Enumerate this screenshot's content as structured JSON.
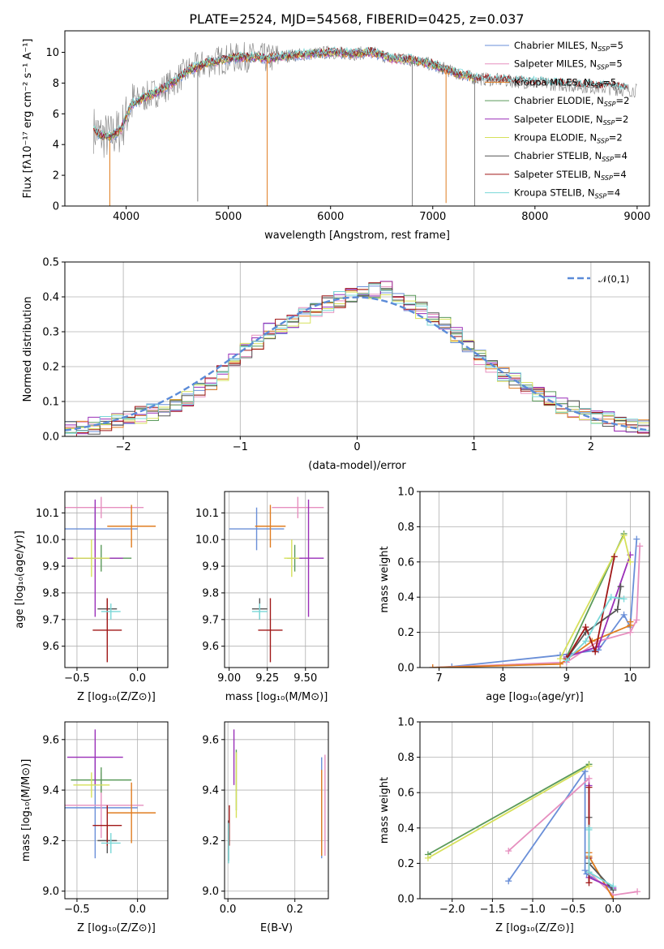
{
  "figure": {
    "title": "PLATE=2524, MJD=54568, FIBERID=0425, z=0.037"
  },
  "colors": {
    "chabrier_miles": "#6a8fd8",
    "salpeter_miles": "#e68fbf",
    "kroupa_miles": "#e07d20",
    "chabrier_elodie": "#5a9a5a",
    "salpeter_elodie": "#9a2fb8",
    "kroupa_elodie": "#d6e05a",
    "chabrier_stelib": "#555555",
    "salpeter_stelib": "#a01818",
    "kroupa_stelib": "#7ad8d8",
    "data": "#808080",
    "gaussian": "#5b8bd8"
  },
  "chart_data": [
    {
      "id": "spectrum",
      "type": "line",
      "xlabel": "wavelength [Angstrom, rest frame]",
      "ylabel": "Flux [fλ10⁻¹⁷ erg cm⁻² s⁻¹ A⁻¹]",
      "xlim": [
        3400,
        9120
      ],
      "ylim": [
        0,
        11.4
      ],
      "xticks": [
        4000,
        5000,
        6000,
        7000,
        8000,
        9000
      ],
      "yticks": [
        0,
        2,
        4,
        6,
        8,
        10
      ],
      "legend_position": "top-right",
      "legend": [
        "Chabrier MILES, N_SSP=5",
        "Salpeter MILES, N_SSP=5",
        "Kroupa MILES, N_SSP=5",
        "Chabrier ELODIE, N_SSP=2",
        "Salpeter ELODIE, N_SSP=2",
        "Kroupa ELODIE, N_SSP=2",
        "Chabrier STELIB, N_SSP=4",
        "Salpeter STELIB, N_SSP=4",
        "Kroupa STELIB, N_SSP=4"
      ],
      "continuum": {
        "x": [
          3680,
          3750,
          3850,
          3950,
          4050,
          4150,
          4300,
          4450,
          4600,
          4800,
          5000,
          5200,
          5400,
          5600,
          5800,
          6000,
          6200,
          6400,
          6600,
          6800,
          7000,
          7200,
          7420
        ],
        "y": [
          5.0,
          4.6,
          4.5,
          5.0,
          6.6,
          7.0,
          7.4,
          8.0,
          8.8,
          9.3,
          9.6,
          9.7,
          9.6,
          9.8,
          9.9,
          10.0,
          9.9,
          10.0,
          9.6,
          9.5,
          9.2,
          8.7,
          8.3
        ]
      },
      "spikes": [
        {
          "x": 3840,
          "y": 0.0
        },
        {
          "x": 4700,
          "y": 0.3
        },
        {
          "x": 5380,
          "y": 0.0
        },
        {
          "x": 6800,
          "y": 0.0
        },
        {
          "x": 7130,
          "y": 0.2
        },
        {
          "x": 7410,
          "y": 0.0
        }
      ]
    },
    {
      "id": "residuals",
      "type": "line",
      "xlabel": "(data-model)/error",
      "ylabel": "Normed distribution",
      "xlim": [
        -2.5,
        2.5
      ],
      "ylim": [
        0,
        0.5
      ],
      "xticks": [
        -2,
        -1,
        0,
        1,
        2
      ],
      "yticks": [
        0.0,
        0.1,
        0.2,
        0.3,
        0.4,
        0.5
      ],
      "legend_position": "top-right",
      "legend": [
        "𝒩(0,1)"
      ],
      "histogram_envelope": {
        "x": [
          -2.5,
          -2.25,
          -2.0,
          -1.75,
          -1.5,
          -1.25,
          -1.0,
          -0.75,
          -0.5,
          -0.25,
          0.0,
          0.25,
          0.5,
          0.75,
          1.0,
          1.25,
          1.5,
          1.75,
          2.0,
          2.25,
          2.5
        ],
        "y": [
          0.02,
          0.03,
          0.05,
          0.07,
          0.1,
          0.15,
          0.23,
          0.3,
          0.34,
          0.38,
          0.41,
          0.42,
          0.37,
          0.32,
          0.24,
          0.18,
          0.13,
          0.09,
          0.06,
          0.04,
          0.03
        ]
      }
    },
    {
      "id": "age_vs_Z",
      "type": "scatter",
      "xlabel": "Z [log₁₀(Z/Z⊙)]",
      "ylabel": "age  [log₁₀(age/yr)]",
      "xlim": [
        -0.6,
        0.25
      ],
      "ylim": [
        9.52,
        10.18
      ],
      "xticks": [
        -0.5,
        0.0
      ],
      "yticks": [
        9.6,
        9.7,
        9.8,
        9.9,
        10.0,
        10.1
      ],
      "points": [
        {
          "key": "chabrier_miles",
          "x": -0.35,
          "y": 10.04,
          "xerr": 0.35,
          "yerr": 0.08
        },
        {
          "key": "salpeter_miles",
          "x": -0.3,
          "y": 10.12,
          "xerr": 0.35,
          "yerr": 0.04
        },
        {
          "key": "kroupa_miles",
          "x": -0.05,
          "y": 10.05,
          "xerr": 0.2,
          "yerr": 0.08
        },
        {
          "key": "chabrier_elodie",
          "x": -0.3,
          "y": 9.93,
          "xerr": 0.25,
          "yerr": 0.05
        },
        {
          "key": "salpeter_elodie",
          "x": -0.35,
          "y": 9.93,
          "xerr": 0.23,
          "yerr": 0.22
        },
        {
          "key": "kroupa_elodie",
          "x": -0.38,
          "y": 9.93,
          "xerr": 0.15,
          "yerr": 0.07
        },
        {
          "key": "chabrier_stelib",
          "x": -0.25,
          "y": 9.74,
          "xerr": 0.08,
          "yerr": 0.04
        },
        {
          "key": "salpeter_stelib",
          "x": -0.25,
          "y": 9.66,
          "xerr": 0.12,
          "yerr": 0.12
        },
        {
          "key": "kroupa_stelib",
          "x": -0.22,
          "y": 9.73,
          "xerr": 0.08,
          "yerr": 0.03
        }
      ]
    },
    {
      "id": "age_vs_mass",
      "type": "scatter",
      "xlabel": "mass [log₁₀(M/M⊙)]",
      "ylabel": "",
      "xlim": [
        8.97,
        9.65
      ],
      "ylim": [
        9.52,
        10.18
      ],
      "xticks": [
        9.0,
        9.25,
        9.5
      ],
      "yticks": [
        9.6,
        9.7,
        9.8,
        9.9,
        10.0,
        10.1
      ],
      "points": [
        {
          "key": "chabrier_miles",
          "x": 9.18,
          "y": 10.04,
          "xerr": 0.18,
          "yerr": 0.08
        },
        {
          "key": "salpeter_miles",
          "x": 9.45,
          "y": 10.12,
          "xerr": 0.17,
          "yerr": 0.04
        },
        {
          "key": "kroupa_miles",
          "x": 9.27,
          "y": 10.05,
          "xerr": 0.1,
          "yerr": 0.08
        },
        {
          "key": "chabrier_elodie",
          "x": 9.43,
          "y": 9.93,
          "xerr": 0.05,
          "yerr": 0.05
        },
        {
          "key": "salpeter_elodie",
          "x": 9.52,
          "y": 9.93,
          "xerr": 0.1,
          "yerr": 0.22
        },
        {
          "key": "kroupa_elodie",
          "x": 9.41,
          "y": 9.93,
          "xerr": 0.05,
          "yerr": 0.07
        },
        {
          "key": "chabrier_stelib",
          "x": 9.2,
          "y": 9.74,
          "xerr": 0.05,
          "yerr": 0.04
        },
        {
          "key": "salpeter_stelib",
          "x": 9.27,
          "y": 9.66,
          "xerr": 0.08,
          "yerr": 0.12
        },
        {
          "key": "kroupa_stelib",
          "x": 9.2,
          "y": 9.73,
          "xerr": 0.05,
          "yerr": 0.03
        }
      ]
    },
    {
      "id": "massweight_vs_age",
      "type": "line",
      "xlabel": "age  [log₁₀(age/yr)]",
      "ylabel": "mass weight",
      "xlim": [
        6.7,
        10.3
      ],
      "ylim": [
        0,
        1.0
      ],
      "xticks": [
        7,
        8,
        9,
        10
      ],
      "yticks": [
        0.0,
        0.2,
        0.4,
        0.6,
        0.8,
        1.0
      ],
      "series": [
        {
          "key": "chabrier_miles",
          "x": [
            6.9,
            7.2,
            8.9,
            9.5,
            9.9,
            10.0,
            10.1
          ],
          "y": [
            0.0,
            0.005,
            0.07,
            0.1,
            0.3,
            0.23,
            0.73
          ]
        },
        {
          "key": "salpeter_miles",
          "x": [
            6.9,
            9.0,
            9.5,
            10.0,
            10.1,
            10.15
          ],
          "y": [
            0.0,
            0.03,
            0.15,
            0.2,
            0.27,
            0.69
          ]
        },
        {
          "key": "kroupa_miles",
          "x": [
            6.9,
            8.9,
            9.4,
            10.0,
            10.0
          ],
          "y": [
            0.0,
            0.02,
            0.15,
            0.24,
            0.26
          ]
        },
        {
          "key": "chabrier_elodie",
          "x": [
            9.0,
            9.9
          ],
          "y": [
            0.06,
            0.76
          ]
        },
        {
          "key": "salpeter_elodie",
          "x": [
            9.0,
            9.5,
            10.0
          ],
          "y": [
            0.06,
            0.12,
            0.64
          ]
        },
        {
          "key": "kroupa_elodie",
          "x": [
            8.9,
            9.9,
            10.0
          ],
          "y": [
            0.05,
            0.75,
            0.6
          ]
        },
        {
          "key": "chabrier_stelib",
          "x": [
            9.0,
            9.3,
            9.8,
            9.85
          ],
          "y": [
            0.05,
            0.2,
            0.33,
            0.46
          ]
        },
        {
          "key": "salpeter_stelib",
          "x": [
            9.0,
            9.3,
            9.45,
            9.75
          ],
          "y": [
            0.05,
            0.23,
            0.09,
            0.63
          ]
        },
        {
          "key": "kroupa_stelib",
          "x": [
            9.0,
            9.3,
            9.7,
            9.9
          ],
          "y": [
            0.04,
            0.15,
            0.4,
            0.39
          ]
        }
      ]
    },
    {
      "id": "mass_vs_Z",
      "type": "scatter",
      "xlabel": "Z [log₁₀(Z/Z⊙)]",
      "ylabel": "mass [log₁₀(M/M⊙)]",
      "xlim": [
        -0.6,
        0.25
      ],
      "ylim": [
        8.97,
        9.67
      ],
      "xticks": [
        -0.5,
        0.0
      ],
      "yticks": [
        9.0,
        9.2,
        9.4,
        9.6
      ],
      "points": [
        {
          "key": "chabrier_miles",
          "x": -0.35,
          "y": 9.33,
          "xerr": 0.35,
          "yerr": 0.2
        },
        {
          "key": "salpeter_miles",
          "x": -0.3,
          "y": 9.34,
          "xerr": 0.35,
          "yerr": 0.13
        },
        {
          "key": "kroupa_miles",
          "x": -0.05,
          "y": 9.31,
          "xerr": 0.2,
          "yerr": 0.12
        },
        {
          "key": "chabrier_elodie",
          "x": -0.3,
          "y": 9.44,
          "xerr": 0.25,
          "yerr": 0.05
        },
        {
          "key": "salpeter_elodie",
          "x": -0.35,
          "y": 9.53,
          "xerr": 0.23,
          "yerr": 0.11
        },
        {
          "key": "kroupa_elodie",
          "x": -0.38,
          "y": 9.42,
          "xerr": 0.15,
          "yerr": 0.05
        },
        {
          "key": "chabrier_stelib",
          "x": -0.25,
          "y": 9.2,
          "xerr": 0.08,
          "yerr": 0.05
        },
        {
          "key": "salpeter_stelib",
          "x": -0.25,
          "y": 9.26,
          "xerr": 0.12,
          "yerr": 0.08
        },
        {
          "key": "kroupa_stelib",
          "x": -0.22,
          "y": 9.19,
          "xerr": 0.08,
          "yerr": 0.04
        }
      ]
    },
    {
      "id": "mass_vs_ebv",
      "type": "scatter",
      "xlabel": "E(B-V)",
      "ylabel": "",
      "xlim": [
        -0.01,
        0.3
      ],
      "ylim": [
        8.97,
        9.67
      ],
      "xticks": [
        0.0,
        0.2
      ],
      "yticks": [
        9.0,
        9.2,
        9.4,
        9.6
      ],
      "points": [
        {
          "key": "chabrier_miles",
          "x": 0.28,
          "y": 9.33,
          "xerr": 0,
          "yerr": 0.2
        },
        {
          "key": "salpeter_miles",
          "x": 0.29,
          "y": 9.34,
          "xerr": 0,
          "yerr": 0.2
        },
        {
          "key": "kroupa_miles",
          "x": 0.28,
          "y": 9.31,
          "xerr": 0,
          "yerr": 0.17
        },
        {
          "key": "chabrier_elodie",
          "x": 0.025,
          "y": 9.44,
          "xerr": 0,
          "yerr": 0.12
        },
        {
          "key": "salpeter_elodie",
          "x": 0.018,
          "y": 9.53,
          "xerr": 0,
          "yerr": 0.11
        },
        {
          "key": "kroupa_elodie",
          "x": 0.025,
          "y": 9.42,
          "xerr": 0,
          "yerr": 0.13
        },
        {
          "key": "chabrier_stelib",
          "x": 0.002,
          "y": 9.2,
          "xerr": 0,
          "yerr": 0.08
        },
        {
          "key": "salpeter_stelib",
          "x": 0.004,
          "y": 9.26,
          "xerr": 0,
          "yerr": 0.08
        },
        {
          "key": "kroupa_stelib",
          "x": 0.002,
          "y": 9.19,
          "xerr": 0,
          "yerr": 0.08
        }
      ]
    },
    {
      "id": "massweight_vs_Z",
      "type": "line",
      "xlabel": "Z [log₁₀(Z/Z⊙)]",
      "ylabel": "mass weight",
      "xlim": [
        -2.4,
        0.45
      ],
      "ylim": [
        0,
        1.0
      ],
      "xticks": [
        -2.0,
        -1.5,
        -1.0,
        -0.5,
        0.0
      ],
      "yticks": [
        0.0,
        0.2,
        0.4,
        0.6,
        0.8,
        1.0
      ],
      "series": [
        {
          "key": "chabrier_miles",
          "x": [
            -1.3,
            -0.35,
            -0.35,
            -0.33,
            0.0
          ],
          "y": [
            0.1,
            0.72,
            0.16,
            0.14,
            0.05
          ]
        },
        {
          "key": "salpeter_miles",
          "x": [
            -1.3,
            -0.3,
            -0.3,
            0.0,
            0.3
          ],
          "y": [
            0.27,
            0.68,
            0.15,
            0.02,
            0.04
          ]
        },
        {
          "key": "kroupa_miles",
          "x": [
            -0.3,
            -0.3,
            0.0
          ],
          "y": [
            0.26,
            0.24,
            0.0
          ]
        },
        {
          "key": "chabrier_elodie",
          "x": [
            -2.3,
            -0.3
          ],
          "y": [
            0.25,
            0.76
          ]
        },
        {
          "key": "salpeter_elodie",
          "x": [
            -0.3,
            -0.3,
            0.0
          ],
          "y": [
            0.64,
            0.12,
            0.06
          ]
        },
        {
          "key": "kroupa_elodie",
          "x": [
            -2.3,
            -0.3
          ],
          "y": [
            0.23,
            0.75
          ]
        },
        {
          "key": "chabrier_stelib",
          "x": [
            -0.3,
            -0.3,
            0.0
          ],
          "y": [
            0.46,
            0.2,
            0.05
          ]
        },
        {
          "key": "salpeter_stelib",
          "x": [
            -0.3,
            -0.3,
            -0.3
          ],
          "y": [
            0.63,
            0.23,
            0.09
          ]
        },
        {
          "key": "kroupa_stelib",
          "x": [
            -0.3,
            -0.3,
            -0.3,
            0.0
          ],
          "y": [
            0.4,
            0.39,
            0.15,
            0.07
          ]
        }
      ]
    }
  ]
}
